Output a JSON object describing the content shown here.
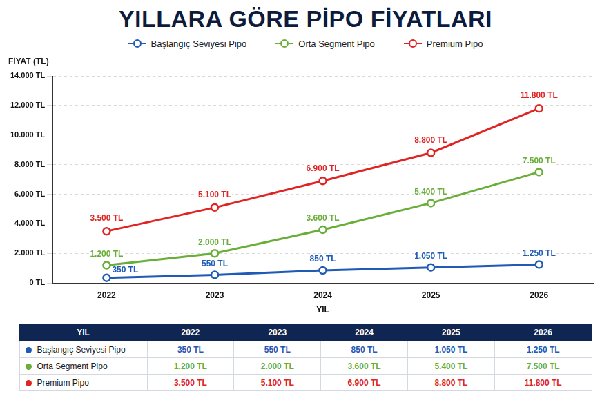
{
  "chart_data": {
    "type": "line",
    "title": "YILLARA GÖRE PİPO FİYATLARI",
    "xlabel": "YIL",
    "ylabel": "FİYAT (TL)",
    "categories": [
      "2022",
      "2023",
      "2024",
      "2025",
      "2026"
    ],
    "series": [
      {
        "name": "Başlangıç Seviyesi Pipo",
        "color": "#1f5bb5",
        "marker": "circle",
        "values": [
          350,
          550,
          850,
          1050,
          1250
        ],
        "value_labels": [
          "350 TL",
          "550 TL",
          "850 TL",
          "1.050 TL",
          "1.250 TL"
        ]
      },
      {
        "name": "Orta Segment Pipo",
        "color": "#6aae3a",
        "marker": "circle",
        "values": [
          1200,
          2000,
          3600,
          5400,
          7500
        ],
        "value_labels": [
          "1.200 TL",
          "2.000 TL",
          "3.600 TL",
          "5.400 TL",
          "7.500 TL"
        ]
      },
      {
        "name": "Premium Pipo",
        "color": "#e02424",
        "marker": "circle",
        "values": [
          3500,
          5100,
          6900,
          8800,
          11800
        ],
        "value_labels": [
          "3.500 TL",
          "5.100 TL",
          "6.900 TL",
          "8.800 TL",
          "11.800 TL"
        ]
      }
    ],
    "ylim": [
      0,
      14000
    ],
    "yticks": [
      {
        "value": 0,
        "label": "0 TL"
      },
      {
        "value": 2000,
        "label": "2.000 TL"
      },
      {
        "value": 4000,
        "label": "4.000 TL"
      },
      {
        "value": 6000,
        "label": "6.000 TL"
      },
      {
        "value": 8000,
        "label": "8.000 TL"
      },
      {
        "value": 10000,
        "label": "10.000 TL"
      },
      {
        "value": 12000,
        "label": "12.000 TL"
      },
      {
        "value": 14000,
        "label": "14.000 TL"
      }
    ],
    "grid": true,
    "legend": "top",
    "data_labels": true
  },
  "table": {
    "header": [
      "YIL",
      "2022",
      "2023",
      "2024",
      "2025",
      "2026"
    ],
    "rows": [
      [
        "Başlangıç Seviyesi Pipo",
        "350 TL",
        "550 TL",
        "850 TL",
        "1.050 TL",
        "1.250 TL"
      ],
      [
        "Orta Segment Pipo",
        "1.200 TL",
        "2.000 TL",
        "3.600 TL",
        "5.400 TL",
        "7.500 TL"
      ],
      [
        "Premium Pipo",
        "3.500 TL",
        "5.100 TL",
        "6.900 TL",
        "8.800 TL",
        "11.800 TL"
      ]
    ]
  }
}
